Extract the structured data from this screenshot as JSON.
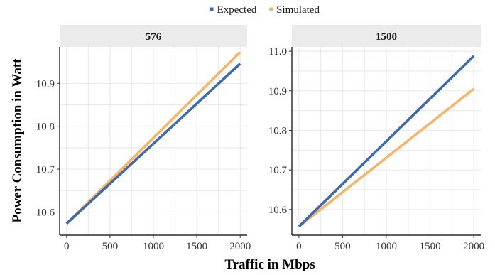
{
  "chart_data": {
    "type": "line",
    "xlabel": "Traffic in Mbps",
    "ylabel": "Power Consumption in Watt",
    "legend": {
      "placement": "top-center",
      "entries": [
        {
          "name": "Expected",
          "color": "#3d6aae"
        },
        {
          "name": "Simulated",
          "color": "#f6b566"
        }
      ]
    },
    "grid": true,
    "panels": [
      {
        "title": "576",
        "xlim": [
          -80,
          2080
        ],
        "ylim": [
          10.546,
          10.985
        ],
        "xticks": [
          0,
          500,
          1000,
          1500,
          2000
        ],
        "yticks": [
          10.6,
          10.7,
          10.8,
          10.9
        ],
        "ytick_labels": [
          "10.6",
          "10.7",
          "10.8",
          "10.9"
        ],
        "series": [
          {
            "name": "Expected",
            "color": "#3d6aae",
            "x": [
              0,
              2000
            ],
            "y": [
              10.573,
              10.946
            ]
          },
          {
            "name": "Simulated",
            "color": "#f6b566",
            "x": [
              0,
              2000
            ],
            "y": [
              10.573,
              10.973
            ]
          }
        ]
      },
      {
        "title": "1500",
        "xlim": [
          -80,
          2080
        ],
        "ylim": [
          10.535,
          11.011
        ],
        "xticks": [
          0,
          500,
          1000,
          1500,
          2000
        ],
        "yticks": [
          10.6,
          10.7,
          10.8,
          10.9,
          11.0
        ],
        "ytick_labels": [
          "10.6",
          "10.7",
          "10.8",
          "10.9",
          "11.0"
        ],
        "series": [
          {
            "name": "Expected",
            "color": "#3d6aae",
            "x": [
              0,
              2000
            ],
            "y": [
              10.557,
              10.988
            ]
          },
          {
            "name": "Simulated",
            "color": "#f6b566",
            "x": [
              0,
              2000
            ],
            "y": [
              10.557,
              10.905
            ]
          }
        ]
      }
    ]
  }
}
